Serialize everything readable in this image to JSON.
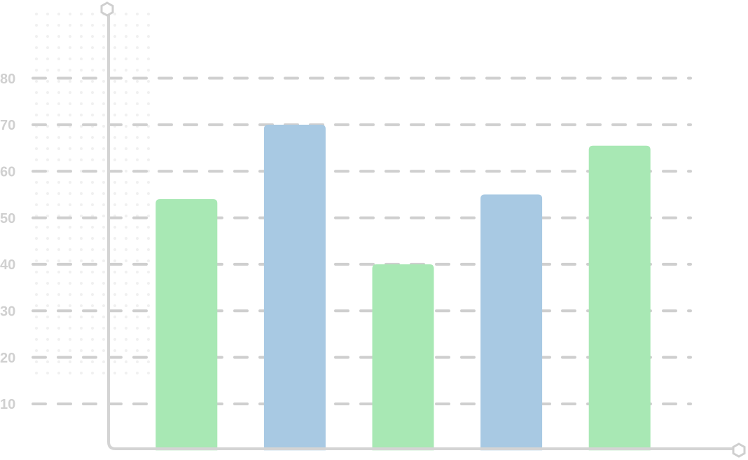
{
  "chart_data": {
    "type": "bar",
    "categories": [
      null,
      null,
      null,
      null,
      null
    ],
    "values": [
      54,
      70,
      40,
      55,
      65.5
    ],
    "colors": [
      "#a8e8b4",
      "#a8c9e3",
      "#a8e8b4",
      "#a8c9e3",
      "#a8e8b4"
    ],
    "ylim": [
      0,
      95
    ],
    "yticks": [
      10,
      20,
      30,
      40,
      50,
      60,
      70,
      80
    ],
    "grid": true
  }
}
